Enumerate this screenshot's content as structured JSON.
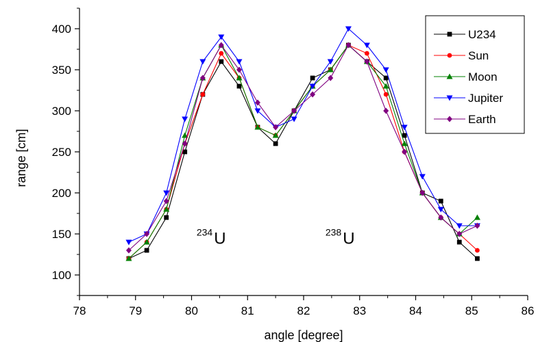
{
  "chart_data": {
    "type": "line",
    "xlabel": "angle [degree]",
    "ylabel": "range [cm]",
    "xlim": [
      78,
      86
    ],
    "ylim": [
      75,
      425
    ],
    "xticks": [
      78,
      79,
      80,
      81,
      82,
      83,
      84,
      85,
      86
    ],
    "xtick_labels": [
      "78",
      "79",
      "80",
      "81",
      "82",
      "83",
      "84",
      "85",
      "86"
    ],
    "yticks": [
      100,
      150,
      200,
      250,
      300,
      350,
      400
    ],
    "ytick_labels": [
      "100",
      "150",
      "200",
      "250",
      "300",
      "350",
      "400"
    ],
    "grid": false,
    "legend_position": "top-right",
    "x": [
      78.88,
      79.2,
      79.55,
      79.88,
      80.2,
      80.53,
      80.85,
      81.18,
      81.5,
      81.83,
      82.16,
      82.48,
      82.8,
      83.13,
      83.47,
      83.8,
      84.12,
      84.45,
      84.78,
      85.1
    ],
    "series": [
      {
        "name": "U234",
        "color": "#000000",
        "marker": "square",
        "values": [
          120,
          130,
          170,
          250,
          320,
          360,
          330,
          280,
          260,
          300,
          340,
          350,
          380,
          360,
          340,
          270,
          200,
          190,
          140,
          120
        ]
      },
      {
        "name": "Sun",
        "color": "#ff0000",
        "marker": "circle",
        "values": [
          120,
          140,
          180,
          260,
          320,
          370,
          340,
          280,
          270,
          300,
          330,
          350,
          380,
          370,
          320,
          250,
          200,
          170,
          150,
          130
        ]
      },
      {
        "name": "Moon",
        "color": "#008000",
        "marker": "triangle-up",
        "values": [
          120,
          140,
          180,
          270,
          340,
          380,
          340,
          280,
          270,
          300,
          330,
          350,
          380,
          360,
          330,
          260,
          200,
          170,
          150,
          170
        ]
      },
      {
        "name": "Jupiter",
        "color": "#0000ff",
        "marker": "triangle-down",
        "values": [
          140,
          150,
          200,
          290,
          360,
          390,
          360,
          300,
          280,
          290,
          330,
          360,
          400,
          380,
          350,
          280,
          220,
          180,
          160,
          160
        ]
      },
      {
        "name": "Earth",
        "color": "#800080",
        "marker": "diamond",
        "values": [
          130,
          150,
          190,
          260,
          340,
          380,
          350,
          310,
          280,
          300,
          320,
          340,
          380,
          360,
          300,
          250,
          200,
          170,
          150,
          160
        ]
      }
    ],
    "annotations": [
      {
        "sup": "234",
        "text": "U",
        "x": 80.4,
        "y": 138
      },
      {
        "sup": "238",
        "text": "U",
        "x": 82.7,
        "y": 138
      }
    ]
  }
}
